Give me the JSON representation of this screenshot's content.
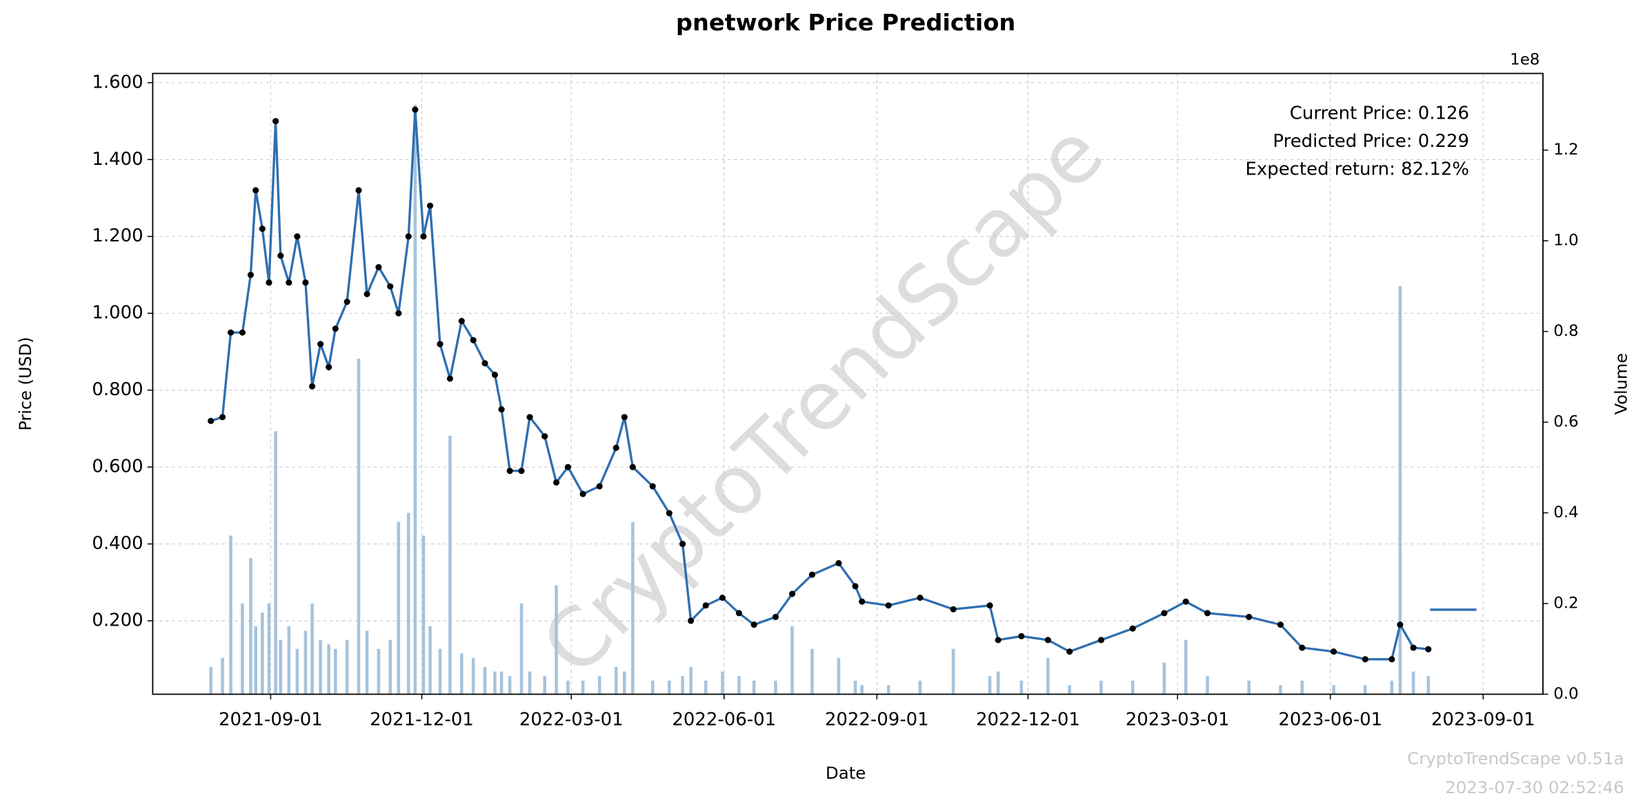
{
  "chart_data": {
    "type": "line",
    "title": "pnetwork Price Prediction",
    "xlabel": "Date",
    "ylabel": "Price (USD)",
    "y2label": "Volume",
    "y2offset": "1e8",
    "annotation": [
      "Current Price: 0.126",
      "Predicted Price: 0.229",
      "Expected return: 82.12%"
    ],
    "watermark": "CryptoTrendScape",
    "footer": [
      "CryptoTrendScape v0.51a",
      "2023-07-30 02:52:46"
    ],
    "grid": true,
    "xlim": [
      "2021-06-22",
      "2023-10-07"
    ],
    "xticks": [
      "2021-09-01",
      "2021-12-01",
      "2022-03-01",
      "2022-06-01",
      "2022-09-01",
      "2022-12-01",
      "2023-03-01",
      "2023-06-01",
      "2023-09-01"
    ],
    "ylim": [
      0.009,
      1.624
    ],
    "yticks": [
      {
        "value": 0.2,
        "label": "0.200"
      },
      {
        "value": 0.4,
        "label": "0.400"
      },
      {
        "value": 0.6,
        "label": "0.600"
      },
      {
        "value": 0.8,
        "label": "0.800"
      },
      {
        "value": 1.0,
        "label": "1.000"
      },
      {
        "value": 1.2,
        "label": "1.200"
      },
      {
        "value": 1.4,
        "label": "1.400"
      },
      {
        "value": 1.6,
        "label": "1.600"
      }
    ],
    "y2lim": [
      0,
      136900000
    ],
    "y2ticks": [
      {
        "value": 0,
        "label": "0.0"
      },
      {
        "value": 20000000,
        "label": "0.2"
      },
      {
        "value": 40000000,
        "label": "0.4"
      },
      {
        "value": 60000000,
        "label": "0.6"
      },
      {
        "value": 80000000,
        "label": "0.8"
      },
      {
        "value": 100000000,
        "label": "1.0"
      },
      {
        "value": 120000000,
        "label": "1.2"
      }
    ],
    "x": [
      "2021-07-27",
      "2021-08-03",
      "2021-08-08",
      "2021-08-15",
      "2021-08-20",
      "2021-08-23",
      "2021-08-27",
      "2021-08-31",
      "2021-09-04",
      "2021-09-07",
      "2021-09-12",
      "2021-09-17",
      "2021-09-22",
      "2021-09-26",
      "2021-10-01",
      "2021-10-06",
      "2021-10-10",
      "2021-10-17",
      "2021-10-24",
      "2021-10-29",
      "2021-11-05",
      "2021-11-12",
      "2021-11-17",
      "2021-11-23",
      "2021-11-27",
      "2021-12-02",
      "2021-12-06",
      "2021-12-12",
      "2021-12-18",
      "2021-12-25",
      "2022-01-01",
      "2022-01-08",
      "2022-01-14",
      "2022-01-18",
      "2022-01-23",
      "2022-01-30",
      "2022-02-04",
      "2022-02-13",
      "2022-02-20",
      "2022-02-27",
      "2022-03-08",
      "2022-03-18",
      "2022-03-28",
      "2022-04-02",
      "2022-04-07",
      "2022-04-19",
      "2022-04-29",
      "2022-05-07",
      "2022-05-12",
      "2022-05-21",
      "2022-05-31",
      "2022-06-10",
      "2022-06-19",
      "2022-07-02",
      "2022-07-12",
      "2022-07-24",
      "2022-08-09",
      "2022-08-19",
      "2022-08-23",
      "2022-09-08",
      "2022-09-27",
      "2022-10-17",
      "2022-11-08",
      "2022-11-13",
      "2022-11-27",
      "2022-12-13",
      "2022-12-26",
      "2023-01-14",
      "2023-02-02",
      "2023-02-21",
      "2023-03-06",
      "2023-03-19",
      "2023-04-13",
      "2023-05-02",
      "2023-05-15",
      "2023-06-03",
      "2023-06-22",
      "2023-07-08",
      "2023-07-13",
      "2023-07-21",
      "2023-07-30"
    ],
    "series": [
      {
        "color": "#2f6fb0",
        "values": [
          0.72,
          0.73,
          0.95,
          0.95,
          1.1,
          1.32,
          1.22,
          1.08,
          1.5,
          1.15,
          1.08,
          1.2,
          1.08,
          0.81,
          0.92,
          0.86,
          0.96,
          1.03,
          1.32,
          1.05,
          1.12,
          1.07,
          1.0,
          1.2,
          1.53,
          1.2,
          1.28,
          0.92,
          0.83,
          0.98,
          0.93,
          0.87,
          0.84,
          0.75,
          0.59,
          0.59,
          0.73,
          0.68,
          0.56,
          0.6,
          0.53,
          0.55,
          0.65,
          0.73,
          0.6,
          0.55,
          0.48,
          0.4,
          0.2,
          0.24,
          0.26,
          0.22,
          0.19,
          0.21,
          0.27,
          0.32,
          0.35,
          0.29,
          0.25,
          0.24,
          0.26,
          0.23,
          0.24,
          0.15,
          0.16,
          0.15,
          0.12,
          0.15,
          0.18,
          0.22,
          0.25,
          0.22,
          0.21,
          0.19,
          0.13,
          0.12,
          0.1,
          0.1,
          0.19,
          0.13,
          0.126
        ]
      },
      {
        "color": "#2f6fb0",
        "x": [
          "2023-07-31",
          "2023-08-28"
        ],
        "values": [
          0.229,
          0.229
        ]
      }
    ],
    "volume": {
      "axis": "y2",
      "color": "#a7c3dc",
      "values": [
        6000000,
        8000000,
        35000000,
        20000000,
        30000000,
        15000000,
        18000000,
        20000000,
        58000000,
        12000000,
        15000000,
        10000000,
        14000000,
        20000000,
        12000000,
        11000000,
        10000000,
        12000000,
        74000000,
        14000000,
        10000000,
        12000000,
        38000000,
        40000000,
        130000000,
        35000000,
        15000000,
        10000000,
        57000000,
        9000000,
        8000000,
        6000000,
        5000000,
        5000000,
        4000000,
        20000000,
        5000000,
        4000000,
        24000000,
        3000000,
        3000000,
        4000000,
        6000000,
        5000000,
        38000000,
        3000000,
        3000000,
        4000000,
        6000000,
        3000000,
        5000000,
        4000000,
        3000000,
        3000000,
        15000000,
        10000000,
        8000000,
        3000000,
        2000000,
        2000000,
        3000000,
        10000000,
        4000000,
        5000000,
        3000000,
        8000000,
        2000000,
        3000000,
        3000000,
        7000000,
        12000000,
        4000000,
        3000000,
        2000000,
        3000000,
        2000000,
        2000000,
        3000000,
        90000000,
        5000000,
        4000000
      ]
    }
  }
}
